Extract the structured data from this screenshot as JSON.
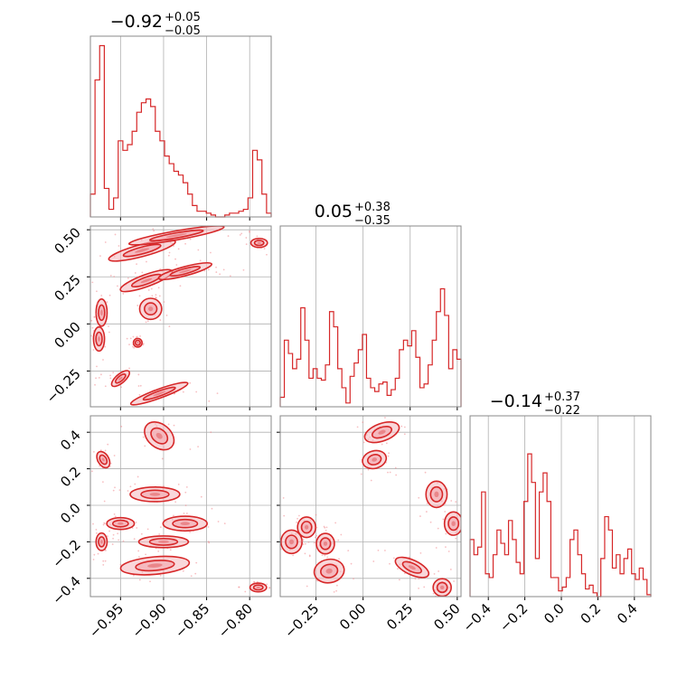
{
  "chart_data": {
    "type": "corner",
    "colors": {
      "series": "#d62728",
      "fill": "#f4b6bb",
      "scatter": "#f08a90",
      "grid": "#b0b0b0"
    },
    "parameters": [
      {
        "title": {
          "median": "−0.92",
          "upper": "+0.05",
          "lower": "−0.05"
        },
        "range": [
          -0.985,
          -0.775
        ],
        "ticks": [
          -0.95,
          -0.9,
          -0.85,
          -0.8
        ],
        "tick_labels": [
          "−0.95",
          "−0.90",
          "−0.85",
          "−0.80"
        ]
      },
      {
        "title": {
          "median": "0.05",
          "upper": "+0.38",
          "lower": "−0.35"
        },
        "range": [
          -0.44,
          0.52
        ],
        "ticks": [
          -0.25,
          0.0,
          0.25,
          0.5
        ],
        "tick_labels": [
          "−0.25",
          "0.00",
          "0.25",
          "0.50"
        ]
      },
      {
        "title": {
          "median": "−0.14",
          "upper": "+0.37",
          "lower": "−0.22"
        },
        "range": [
          -0.5,
          0.49
        ],
        "ticks": [
          -0.4,
          -0.2,
          0.0,
          0.2,
          0.4
        ],
        "tick_labels": [
          "−0.4",
          "−0.2",
          "0.0",
          "0.2",
          "0.4"
        ]
      }
    ],
    "histograms": [
      [
        0.12,
        0.72,
        0.9,
        0.15,
        0.04,
        0.1,
        0.4,
        0.35,
        0.38,
        0.45,
        0.55,
        0.6,
        0.62,
        0.58,
        0.45,
        0.4,
        0.32,
        0.28,
        0.24,
        0.22,
        0.18,
        0.12,
        0.06,
        0.03,
        0.03,
        0.02,
        0.01,
        0.0,
        0.0,
        0.01,
        0.02,
        0.02,
        0.03,
        0.04,
        0.1,
        0.35,
        0.3,
        0.12,
        0.02
      ],
      [
        0.05,
        0.35,
        0.28,
        0.2,
        0.25,
        0.52,
        0.35,
        0.15,
        0.2,
        0.15,
        0.14,
        0.22,
        0.5,
        0.42,
        0.2,
        0.1,
        0.02,
        0.16,
        0.23,
        0.3,
        0.38,
        0.15,
        0.1,
        0.08,
        0.12,
        0.13,
        0.06,
        0.09,
        0.15,
        0.3,
        0.35,
        0.32,
        0.4,
        0.26,
        0.1,
        0.12,
        0.22,
        0.35,
        0.5,
        0.62,
        0.48,
        0.2,
        0.3,
        0.25
      ],
      [
        0.3,
        0.22,
        0.26,
        0.55,
        0.12,
        0.1,
        0.22,
        0.35,
        0.28,
        0.22,
        0.4,
        0.3,
        0.18,
        0.12,
        0.5,
        0.75,
        0.6,
        0.2,
        0.55,
        0.65,
        0.5,
        0.1,
        0.1,
        0.03,
        0.05,
        0.1,
        0.3,
        0.35,
        0.22,
        0.12,
        0.04,
        0.06,
        0.02,
        0.0,
        0.2,
        0.42,
        0.35,
        0.15,
        0.22,
        0.12,
        0.2,
        0.25,
        0.12,
        0.09,
        0.15,
        0.09,
        0.01
      ]
    ],
    "hist_ylim": [
      0,
      0.95
    ],
    "contours": {
      "1_0": [
        {
          "cx": -0.972,
          "cy": 0.06,
          "rx": 0.004,
          "ry": 0.045,
          "rot": 0
        },
        {
          "cx": -0.975,
          "cy": -0.08,
          "rx": 0.004,
          "ry": 0.04,
          "rot": 0
        },
        {
          "cx": -0.95,
          "cy": -0.29,
          "rx": 0.008,
          "ry": 0.015,
          "rot": -40
        },
        {
          "cx": -0.925,
          "cy": 0.39,
          "rx": 0.025,
          "ry": 0.02,
          "rot": -15
        },
        {
          "cx": -0.885,
          "cy": 0.47,
          "rx": 0.035,
          "ry": 0.015,
          "rot": -10
        },
        {
          "cx": -0.92,
          "cy": 0.23,
          "rx": 0.02,
          "ry": 0.02,
          "rot": -20
        },
        {
          "cx": -0.875,
          "cy": 0.28,
          "rx": 0.02,
          "ry": 0.015,
          "rot": -15
        },
        {
          "cx": -0.915,
          "cy": 0.08,
          "rx": 0.008,
          "ry": 0.035,
          "rot": 0
        },
        {
          "cx": -0.93,
          "cy": -0.1,
          "rx": 0.003,
          "ry": 0.006,
          "rot": 0
        },
        {
          "cx": -0.905,
          "cy": -0.37,
          "rx": 0.022,
          "ry": 0.015,
          "rot": -20
        },
        {
          "cx": -0.789,
          "cy": 0.43,
          "rx": 0.006,
          "ry": 0.015,
          "rot": 0
        }
      ],
      "2_0": [
        {
          "cx": -0.97,
          "cy": 0.25,
          "rx": 0.004,
          "ry": 0.03,
          "rot": -30
        },
        {
          "cx": -0.905,
          "cy": 0.38,
          "rx": 0.012,
          "ry": 0.04,
          "rot": 40
        },
        {
          "cx": -0.91,
          "cy": 0.06,
          "rx": 0.018,
          "ry": 0.025,
          "rot": 0
        },
        {
          "cx": -0.95,
          "cy": -0.1,
          "rx": 0.01,
          "ry": 0.02,
          "rot": 0
        },
        {
          "cx": -0.875,
          "cy": -0.1,
          "rx": 0.016,
          "ry": 0.025,
          "rot": 0
        },
        {
          "cx": -0.9,
          "cy": -0.2,
          "rx": 0.018,
          "ry": 0.02,
          "rot": 0
        },
        {
          "cx": -0.972,
          "cy": -0.2,
          "rx": 0.004,
          "ry": 0.03,
          "rot": 0
        },
        {
          "cx": -0.91,
          "cy": -0.33,
          "rx": 0.025,
          "ry": 0.03,
          "rot": -5
        },
        {
          "cx": -0.79,
          "cy": -0.45,
          "rx": 0.006,
          "ry": 0.015,
          "rot": 0
        }
      ],
      "2_1": [
        {
          "cx": 0.1,
          "cy": 0.4,
          "rx": 0.06,
          "ry": 0.03,
          "rot": -20
        },
        {
          "cx": 0.06,
          "cy": 0.25,
          "rx": 0.04,
          "ry": 0.03,
          "rot": -15
        },
        {
          "cx": 0.39,
          "cy": 0.06,
          "rx": 0.035,
          "ry": 0.045,
          "rot": 0
        },
        {
          "cx": 0.48,
          "cy": -0.1,
          "rx": 0.03,
          "ry": 0.04,
          "rot": 0
        },
        {
          "cx": -0.3,
          "cy": -0.12,
          "rx": 0.03,
          "ry": 0.035,
          "rot": 0
        },
        {
          "cx": -0.38,
          "cy": -0.2,
          "rx": 0.035,
          "ry": 0.04,
          "rot": 0
        },
        {
          "cx": -0.2,
          "cy": -0.21,
          "rx": 0.03,
          "ry": 0.035,
          "rot": 0
        },
        {
          "cx": 0.26,
          "cy": -0.34,
          "rx": 0.06,
          "ry": 0.025,
          "rot": 25
        },
        {
          "cx": -0.18,
          "cy": -0.36,
          "rx": 0.05,
          "ry": 0.04,
          "rot": -10
        },
        {
          "cx": 0.42,
          "cy": -0.45,
          "rx": 0.03,
          "ry": 0.03,
          "rot": 0
        }
      ]
    }
  }
}
